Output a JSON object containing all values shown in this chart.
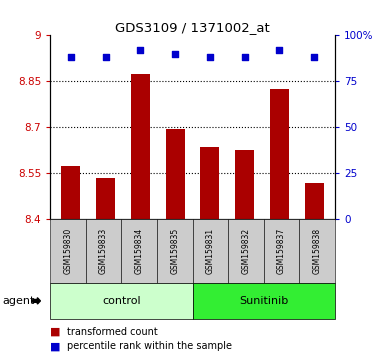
{
  "title": "GDS3109 / 1371002_at",
  "samples": [
    "GSM159830",
    "GSM159833",
    "GSM159834",
    "GSM159835",
    "GSM159831",
    "GSM159832",
    "GSM159837",
    "GSM159838"
  ],
  "bar_values": [
    8.575,
    8.535,
    8.875,
    8.695,
    8.635,
    8.625,
    8.825,
    8.52
  ],
  "percentile_values": [
    88,
    88,
    92,
    90,
    88,
    88,
    92,
    88
  ],
  "ylim_left": [
    8.4,
    9.0
  ],
  "ylim_right": [
    0,
    100
  ],
  "yticks_left": [
    8.4,
    8.55,
    8.7,
    8.85,
    9.0
  ],
  "ytick_labels_left": [
    "8.4",
    "8.55",
    "8.7",
    "8.85",
    "9"
  ],
  "yticks_right": [
    0,
    25,
    50,
    75,
    100
  ],
  "ytick_labels_right": [
    "0",
    "25",
    "50",
    "75",
    "100%"
  ],
  "hlines": [
    8.55,
    8.7,
    8.85
  ],
  "bar_color": "#AA0000",
  "dot_color": "#0000CC",
  "bar_width": 0.55,
  "groups": [
    {
      "label": "control",
      "indices": [
        0,
        1,
        2,
        3
      ],
      "color": "#CCFFCC"
    },
    {
      "label": "Sunitinib",
      "indices": [
        4,
        5,
        6,
        7
      ],
      "color": "#33EE33"
    }
  ],
  "group_row_label": "agent",
  "legend_bar_label": "transformed count",
  "legend_dot_label": "percentile rank within the sample",
  "tick_label_color_left": "#CC0000",
  "tick_label_color_right": "#0000CC",
  "title_color": "#000000",
  "plot_bg_color": "#FFFFFF",
  "xticklabel_bg": "#CCCCCC"
}
